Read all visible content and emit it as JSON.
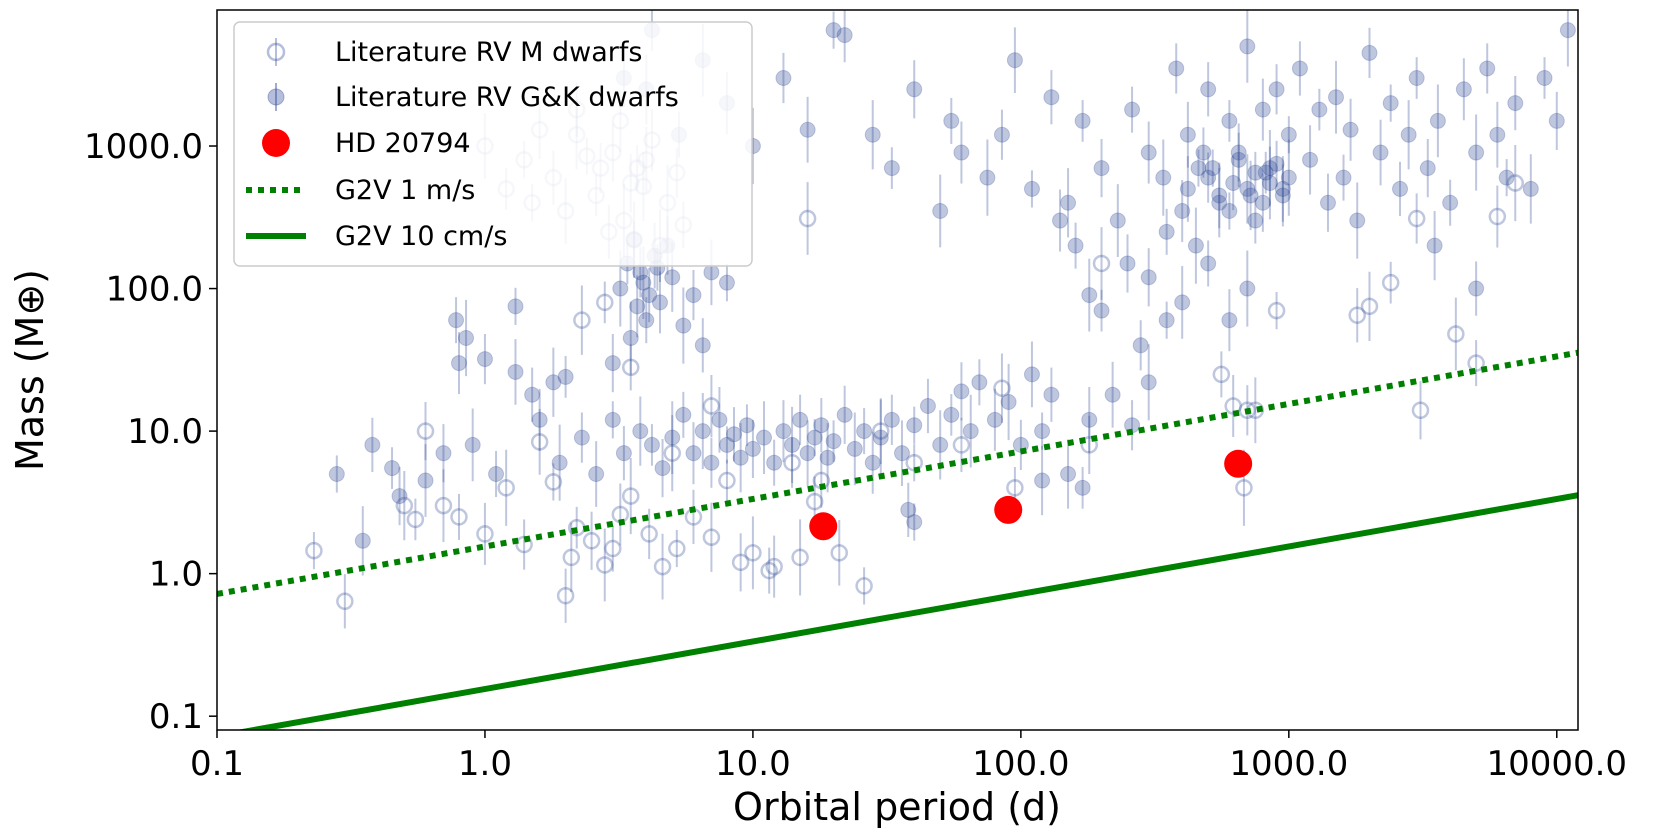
{
  "chart_data": {
    "type": "scatter",
    "xlabel": "Orbital period (d)",
    "ylabel": "Mass (M⊕)",
    "x_scale": "log",
    "y_scale": "log",
    "xlim": [
      0.1,
      12000
    ],
    "ylim": [
      0.08,
      9000
    ],
    "x_ticks": [
      0.1,
      1,
      10,
      100,
      1000,
      10000
    ],
    "x_tick_labels": [
      "0.1",
      "1.0",
      "10.0",
      "100.0",
      "1000.0",
      "10000.0"
    ],
    "y_ticks": [
      0.1,
      1,
      10,
      100,
      1000
    ],
    "y_tick_labels": [
      "0.1",
      "1.0",
      "10.0",
      "100.0",
      "1000.0"
    ],
    "grid": false,
    "legend_position": "top-left",
    "legend": [
      {
        "label": "Literature RV M dwarfs",
        "marker": "open-circle-errorbar",
        "color": "#2c4694"
      },
      {
        "label": "Literature RV G&K dwarfs",
        "marker": "filled-circle-errorbar",
        "color": "#2c4694"
      },
      {
        "label": "HD 20794",
        "marker": "filled-circle",
        "color": "#ff0000"
      },
      {
        "label": "G2V 1 m/s",
        "marker": "dotted-line",
        "color": "#008000"
      },
      {
        "label": "G2V 10 cm/s",
        "marker": "solid-line",
        "color": "#008000"
      }
    ],
    "series": [
      {
        "name": "Literature RV M dwarfs",
        "color": "#2c4694",
        "points": [
          [
            0.23,
            1.45
          ],
          [
            0.3,
            0.64
          ],
          [
            0.5,
            3.0
          ],
          [
            0.55,
            2.4
          ],
          [
            0.6,
            10.0
          ],
          [
            0.7,
            3.0
          ],
          [
            0.8,
            2.5
          ],
          [
            1.0,
            1.9
          ],
          [
            1.2,
            4.0
          ],
          [
            1.4,
            1.6
          ],
          [
            1.6,
            8.4
          ],
          [
            1.8,
            4.4
          ],
          [
            2.0,
            0.7
          ],
          [
            2.1,
            1.3
          ],
          [
            2.2,
            2.1
          ],
          [
            2.5,
            1.7
          ],
          [
            2.8,
            1.15
          ],
          [
            3.0,
            1.5
          ],
          [
            3.2,
            2.6
          ],
          [
            3.5,
            3.5
          ],
          [
            4.1,
            1.9
          ],
          [
            4.6,
            1.12
          ],
          [
            5.2,
            1.5
          ],
          [
            6.0,
            2.5
          ],
          [
            7.0,
            1.8
          ],
          [
            8.0,
            4.5
          ],
          [
            9.0,
            1.2
          ],
          [
            10.0,
            1.4
          ],
          [
            11.5,
            1.05
          ],
          [
            12.0,
            1.12
          ],
          [
            15.0,
            1.3
          ],
          [
            17.0,
            3.2
          ],
          [
            21.0,
            1.4
          ],
          [
            26.0,
            0.82
          ],
          [
            18.0,
            4.5
          ],
          [
            2.3,
            60.0
          ],
          [
            2.8,
            80.0
          ],
          [
            3.5,
            550.0
          ],
          [
            16.0,
            310.0
          ],
          [
            3.5,
            28.0
          ],
          [
            7.0,
            15.0
          ],
          [
            5.0,
            7.0
          ],
          [
            14.0,
            6.0
          ],
          [
            30.0,
            10.0
          ],
          [
            40.0,
            6.0
          ],
          [
            60.0,
            8.0
          ],
          [
            85.0,
            20.0
          ],
          [
            95.0,
            4.0
          ],
          [
            180.0,
            8.0
          ],
          [
            200.0,
            150.0
          ],
          [
            560.0,
            25.0
          ],
          [
            620.0,
            15.0
          ],
          [
            680.0,
            4.0
          ],
          [
            700.0,
            14.0
          ],
          [
            750.0,
            14.0
          ],
          [
            900.0,
            70.0
          ],
          [
            1800.0,
            65.0
          ],
          [
            2000.0,
            75.0
          ],
          [
            2400.0,
            110.0
          ],
          [
            3100.0,
            14.0
          ],
          [
            4200.0,
            48.0
          ],
          [
            5000.0,
            30.0
          ],
          [
            6000.0,
            320.0
          ],
          [
            7000.0,
            550.0
          ],
          [
            3000.0,
            310.0
          ],
          [
            1.0,
            1000.0
          ],
          [
            1.4,
            800.0
          ],
          [
            1.8,
            600.0
          ],
          [
            2.2,
            1200.0
          ],
          [
            2.6,
            450.0
          ],
          [
            3.0,
            900.0
          ],
          [
            3.3,
            300.0
          ],
          [
            3.7,
            700.0
          ],
          [
            4.2,
            1100.0
          ],
          [
            4.8,
            400.0
          ],
          [
            5.2,
            650.0
          ],
          [
            2.0,
            350.0
          ],
          [
            2.4,
            850.0
          ],
          [
            2.9,
            250.0
          ],
          [
            3.9,
            520.0
          ],
          [
            1.2,
            500.0
          ],
          [
            1.6,
            1300.0
          ],
          [
            4.5,
            200.0
          ],
          [
            5.5,
            280.0
          ],
          [
            3.2,
            1500.0
          ],
          [
            3.6,
            220.0
          ],
          [
            2.7,
            700.0
          ],
          [
            4.0,
            800.0
          ],
          [
            1.5,
            400.0
          ],
          [
            2.2,
            1800.0
          ]
        ]
      },
      {
        "name": "Literature RV G&K dwarfs",
        "color": "#2c4694",
        "points": [
          [
            0.28,
            5.0
          ],
          [
            0.38,
            8.0
          ],
          [
            0.35,
            1.7
          ],
          [
            0.45,
            5.5
          ],
          [
            0.48,
            3.5
          ],
          [
            0.6,
            4.5
          ],
          [
            0.78,
            60.0
          ],
          [
            0.8,
            30.0
          ],
          [
            0.85,
            45.0
          ],
          [
            1.0,
            32.0
          ],
          [
            1.3,
            26.0
          ],
          [
            1.3,
            75.0
          ],
          [
            1.5,
            18.0
          ],
          [
            1.8,
            22.0
          ],
          [
            2.0,
            24.0
          ],
          [
            0.7,
            7.0
          ],
          [
            0.9,
            8.0
          ],
          [
            1.1,
            5.0
          ],
          [
            1.6,
            12.0
          ],
          [
            1.9,
            6.0
          ],
          [
            2.3,
            9.0
          ],
          [
            2.6,
            5.0
          ],
          [
            3.0,
            12.0
          ],
          [
            3.3,
            7.0
          ],
          [
            3.8,
            10.0
          ],
          [
            4.2,
            8.0
          ],
          [
            4.6,
            5.5
          ],
          [
            5.0,
            9.0
          ],
          [
            5.5,
            13.0
          ],
          [
            6.0,
            7.0
          ],
          [
            6.5,
            10.0
          ],
          [
            7.0,
            6.0
          ],
          [
            7.5,
            12.0
          ],
          [
            8.0,
            8.0
          ],
          [
            8.5,
            9.5
          ],
          [
            9.0,
            6.5
          ],
          [
            9.5,
            11.0
          ],
          [
            10.0,
            7.5
          ],
          [
            11.0,
            9.0
          ],
          [
            12.0,
            6.0
          ],
          [
            13.0,
            10.0
          ],
          [
            14.0,
            8.0
          ],
          [
            15.0,
            12.0
          ],
          [
            16.0,
            7.0
          ],
          [
            17.0,
            9.0
          ],
          [
            18.0,
            11.0
          ],
          [
            19.0,
            6.5
          ],
          [
            20.0,
            8.5
          ],
          [
            22.0,
            13.0
          ],
          [
            24.0,
            7.5
          ],
          [
            26.0,
            10.0
          ],
          [
            28.0,
            6.0
          ],
          [
            30.0,
            9.0
          ],
          [
            33.0,
            12.0
          ],
          [
            36.0,
            7.0
          ],
          [
            40.0,
            11.0
          ],
          [
            45.0,
            15.0
          ],
          [
            50.0,
            8.0
          ],
          [
            55.0,
            13.0
          ],
          [
            60.0,
            19.0
          ],
          [
            65.0,
            10.0
          ],
          [
            70.0,
            22.0
          ],
          [
            80.0,
            12.0
          ],
          [
            90.0,
            16.0
          ],
          [
            100.0,
            8.0
          ],
          [
            110.0,
            25.0
          ],
          [
            120.0,
            10.0
          ],
          [
            130.0,
            18.0
          ],
          [
            150.0,
            5.0
          ],
          [
            170.0,
            4.0
          ],
          [
            3.0,
            30.0
          ],
          [
            3.5,
            45.0
          ],
          [
            4.0,
            60.0
          ],
          [
            4.5,
            80.0
          ],
          [
            3.2,
            100.0
          ],
          [
            3.8,
            130.0
          ],
          [
            4.3,
            170.0
          ],
          [
            3.6,
            220.0
          ],
          [
            4.1,
            90.0
          ],
          [
            5.0,
            120.0
          ],
          [
            3.4,
            150.0
          ],
          [
            4.8,
            200.0
          ],
          [
            3.9,
            110.0
          ],
          [
            4.4,
            140.0
          ],
          [
            3.7,
            75.0
          ],
          [
            5.5,
            55.0
          ],
          [
            6.0,
            90.0
          ],
          [
            7.0,
            130.0
          ],
          [
            8.0,
            110.0
          ],
          [
            6.5,
            40.0
          ],
          [
            4.0,
            2500.0
          ],
          [
            4.2,
            6500.0
          ],
          [
            3.3,
            3000.0
          ],
          [
            6.5,
            4000.0
          ],
          [
            5.3,
            1200.0
          ],
          [
            8.0,
            2000.0
          ],
          [
            10.0,
            1000.0
          ],
          [
            13.0,
            3000.0
          ],
          [
            16.0,
            1300.0
          ],
          [
            20.0,
            6500.0
          ],
          [
            22.0,
            6000.0
          ],
          [
            28.0,
            1200.0
          ],
          [
            33.0,
            700.0
          ],
          [
            40.0,
            2500.0
          ],
          [
            50.0,
            350.0
          ],
          [
            55.0,
            1500.0
          ],
          [
            60.0,
            900.0
          ],
          [
            75.0,
            600.0
          ],
          [
            85.0,
            1200.0
          ],
          [
            95.0,
            4000.0
          ],
          [
            110.0,
            500.0
          ],
          [
            130.0,
            2200.0
          ],
          [
            150.0,
            400.0
          ],
          [
            170.0,
            1500.0
          ],
          [
            200.0,
            700.0
          ],
          [
            230.0,
            300.0
          ],
          [
            260.0,
            1800.0
          ],
          [
            300.0,
            900.0
          ],
          [
            340.0,
            600.0
          ],
          [
            380.0,
            3500.0
          ],
          [
            420.0,
            1200.0
          ],
          [
            460.0,
            700.0
          ],
          [
            500.0,
            2500.0
          ],
          [
            550.0,
            400.0
          ],
          [
            600.0,
            1500.0
          ],
          [
            650.0,
            900.0
          ],
          [
            700.0,
            5000.0
          ],
          [
            750.0,
            300.0
          ],
          [
            800.0,
            1800.0
          ],
          [
            850.0,
            700.0
          ],
          [
            900.0,
            2500.0
          ],
          [
            950.0,
            500.0
          ],
          [
            1000.0,
            1200.0
          ],
          [
            1100.0,
            3500.0
          ],
          [
            1200.0,
            800.0
          ],
          [
            1300.0,
            1800.0
          ],
          [
            1400.0,
            400.0
          ],
          [
            1500.0,
            2200.0
          ],
          [
            1600.0,
            600.0
          ],
          [
            1700.0,
            1300.0
          ],
          [
            1800.0,
            300.0
          ],
          [
            2000.0,
            4500.0
          ],
          [
            2200.0,
            900.0
          ],
          [
            2400.0,
            2000.0
          ],
          [
            2600.0,
            500.0
          ],
          [
            2800.0,
            1200.0
          ],
          [
            3000.0,
            3000.0
          ],
          [
            3300.0,
            700.0
          ],
          [
            3600.0,
            1500.0
          ],
          [
            4000.0,
            400.0
          ],
          [
            4500.0,
            2500.0
          ],
          [
            5000.0,
            900.0
          ],
          [
            5500.0,
            3500.0
          ],
          [
            6000.0,
            1200.0
          ],
          [
            6500.0,
            600.0
          ],
          [
            7000.0,
            2000.0
          ],
          [
            8000.0,
            500.0
          ],
          [
            9000.0,
            3000.0
          ],
          [
            10000.0,
            1500.0
          ],
          [
            11000.0,
            6500.0
          ],
          [
            350.0,
            250.0
          ],
          [
            400.0,
            350.0
          ],
          [
            450.0,
            200.0
          ],
          [
            500.0,
            600.0
          ],
          [
            550.0,
            450.0
          ],
          [
            600.0,
            350.0
          ],
          [
            650.0,
            800.0
          ],
          [
            700.0,
            500.0
          ],
          [
            750.0,
            650.0
          ],
          [
            800.0,
            400.0
          ],
          [
            850.0,
            550.0
          ],
          [
            900.0,
            750.0
          ],
          [
            950.0,
            450.0
          ],
          [
            1000.0,
            600.0
          ],
          [
            480.0,
            900.0
          ],
          [
            420.0,
            500.0
          ],
          [
            520.0,
            700.0
          ],
          [
            620.0,
            550.0
          ],
          [
            720.0,
            450.0
          ],
          [
            820.0,
            650.0
          ],
          [
            300.0,
            120.0
          ],
          [
            400.0,
            80.0
          ],
          [
            500.0,
            150.0
          ],
          [
            600.0,
            60.0
          ],
          [
            700.0,
            100.0
          ],
          [
            280.0,
            40.0
          ],
          [
            220.0,
            18.0
          ],
          [
            350.0,
            60.0
          ],
          [
            5000.0,
            100.0
          ],
          [
            3500.0,
            200.0
          ],
          [
            200.0,
            70.0
          ],
          [
            250.0,
            150.0
          ],
          [
            180.0,
            90.0
          ],
          [
            160.0,
            200.0
          ],
          [
            140.0,
            300.0
          ],
          [
            300.0,
            22.0
          ],
          [
            260.0,
            11.0
          ],
          [
            180.0,
            12.0
          ],
          [
            40.0,
            2.3
          ],
          [
            38.0,
            2.8
          ],
          [
            120.0,
            4.5
          ]
        ]
      },
      {
        "name": "HD 20794",
        "color": "#ff0000",
        "points": [
          [
            18.3,
            2.15
          ],
          [
            89.7,
            2.8
          ],
          [
            647.0,
            5.9
          ]
        ]
      },
      {
        "name": "G2V 1 m/s",
        "color": "#008000",
        "line_style": "dotted",
        "points": [
          [
            0.1,
            0.72
          ],
          [
            12000.0,
            35.5
          ]
        ]
      },
      {
        "name": "G2V 10 cm/s",
        "color": "#008000",
        "line_style": "solid",
        "points": [
          [
            0.1,
            0.072
          ],
          [
            12000.0,
            3.55
          ]
        ]
      }
    ]
  }
}
